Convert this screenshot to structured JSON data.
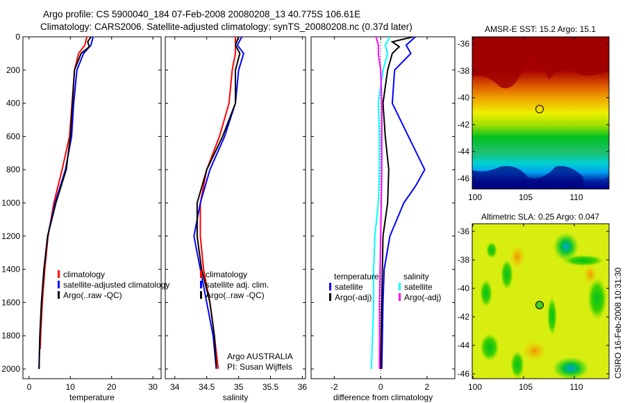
{
  "title": {
    "line1": "Argo profile: CS 5900040_184 07-Feb-2008 20080208_13 40.775S 106.61E",
    "line2": "Climatology: CARS2006. Satellite-adjusted climatology: synTS_20080208.nc (0.37d later)"
  },
  "credit": "CSIRO 16-Feb-2008 10:31:30",
  "colors": {
    "climatology": "#ff0000",
    "satellite": "#0000ff",
    "argo": "#000000",
    "sal_satellite": "#00ffff",
    "sal_argo": "#ff00ff"
  },
  "chart_data": [
    {
      "type": "line",
      "id": "temperature",
      "xlabel": "temperature",
      "xlim": [
        -1.5,
        32
      ],
      "xticks": [
        "0",
        "10",
        "20",
        "30"
      ],
      "ylim": [
        0,
        2050
      ],
      "yticks": [
        "0",
        "200",
        "400",
        "600",
        "800",
        "1000",
        "1200",
        "1400",
        "1600",
        "1800",
        "2000"
      ],
      "ylabel_reversed": true,
      "legend": [
        "climatology",
        "satellite-adjusted climatology",
        "Argo(..raw -QC)"
      ],
      "series": [
        {
          "name": "climatology",
          "color": "#ff0000",
          "depth": [
            0,
            50,
            100,
            200,
            400,
            600,
            800,
            1000,
            1200,
            1400,
            1600,
            1800,
            1880
          ],
          "values": [
            14,
            13.5,
            12,
            11,
            10.4,
            9.8,
            8,
            6,
            4.6,
            3.8,
            3.2,
            2.8,
            2.7
          ]
        },
        {
          "name": "satellite-adjusted climatology",
          "color": "#0000ff",
          "depth": [
            0,
            50,
            100,
            200,
            400,
            600,
            800,
            1000,
            1200,
            1400,
            1600,
            1800,
            2000
          ],
          "values": [
            15.5,
            15,
            13.2,
            11.6,
            10.8,
            10.3,
            8.8,
            6.3,
            4.5,
            3.6,
            3,
            2.6,
            2.4
          ]
        },
        {
          "name": "Argo(..raw -QC)",
          "color": "#000000",
          "depth": [
            0,
            30,
            60,
            100,
            200,
            400,
            600,
            800,
            1000,
            1200,
            1400,
            1600,
            1800,
            2000
          ],
          "values": [
            15,
            14.2,
            14.6,
            12.6,
            11,
            10.5,
            10,
            9,
            6.5,
            4.5,
            3.6,
            3,
            2.6,
            2.4
          ]
        }
      ]
    },
    {
      "type": "line",
      "id": "salinity",
      "xlabel": "salinity",
      "xlim": [
        33.85,
        36.05
      ],
      "xticks": [
        "34",
        "34.5",
        "35",
        "35.5",
        "36"
      ],
      "ylim": [
        0,
        2050
      ],
      "legend": [
        "climatology",
        "satellite adj. clim.",
        "Argo(..raw -QC)"
      ],
      "annotation": [
        "Argo AUSTRALIA",
        "PI: Susan Wijffels"
      ],
      "series": [
        {
          "name": "climatology",
          "color": "#ff0000",
          "depth": [
            0,
            100,
            200,
            400,
            600,
            800,
            1000,
            1200,
            1400,
            1600,
            1800,
            2000
          ],
          "values": [
            34.95,
            34.95,
            34.9,
            34.85,
            34.7,
            34.5,
            34.4,
            34.4,
            34.45,
            34.55,
            34.62,
            34.68
          ]
        },
        {
          "name": "satellite adj. clim.",
          "color": "#0000ff",
          "depth": [
            0,
            50,
            100,
            200,
            400,
            600,
            800,
            1000,
            1200,
            1400,
            1600,
            1800,
            2000
          ],
          "values": [
            35.05,
            34.98,
            35.08,
            35,
            34.95,
            34.78,
            34.55,
            34.4,
            34.3,
            34.4,
            34.5,
            34.6,
            34.65
          ]
        },
        {
          "name": "Argo(..raw -QC)",
          "color": "#000000",
          "depth": [
            0,
            50,
            100,
            200,
            400,
            600,
            800,
            1000,
            1200,
            1400,
            1600,
            1800,
            1990
          ],
          "values": [
            35,
            34.95,
            35.02,
            34.95,
            34.95,
            34.75,
            34.5,
            34.35,
            34.35,
            34.42,
            34.55,
            34.62,
            34.65
          ]
        }
      ]
    },
    {
      "type": "line",
      "id": "difference",
      "xlabel": "difference from climatology",
      "xlim": [
        -3,
        3.2
      ],
      "xticks": [
        "-2",
        "0",
        "2"
      ],
      "ylim": [
        0,
        2050
      ],
      "legend_headers": [
        "temperature",
        "salinity"
      ],
      "legend": [
        "satellite",
        "Argo(-adj)",
        "satellite",
        "Argo(-adj)"
      ],
      "series": [
        {
          "name": "temperature satellite",
          "color": "#0000ff",
          "depth": [
            0,
            50,
            100,
            200,
            400,
            600,
            800,
            900,
            1000,
            1200,
            1400,
            1600,
            2000
          ],
          "values": [
            1.5,
            1.1,
            1.3,
            0.6,
            0.5,
            1.2,
            1.9,
            1.5,
            1.0,
            0.4,
            0.15,
            0.1,
            0.05
          ]
        },
        {
          "name": "temperature Argo(-adj)",
          "color": "#000000",
          "depth": [
            0,
            30,
            60,
            100,
            200,
            400,
            600,
            800,
            1000,
            1200,
            1600,
            2000
          ],
          "values": [
            1.4,
            0.5,
            0.8,
            0.5,
            0.3,
            0.1,
            0.2,
            0.35,
            0.3,
            0.1,
            0.05,
            0
          ]
        },
        {
          "name": "salinity satellite",
          "color": "#00ffff",
          "depth": [
            0,
            50,
            100,
            200,
            400,
            600,
            800,
            1000,
            1200,
            1400,
            1600,
            1800,
            2000
          ],
          "values": [
            0.4,
            0.2,
            0.3,
            0.1,
            -0.1,
            -0.05,
            -0.05,
            -0.1,
            -0.25,
            -0.3,
            -0.3,
            -0.35,
            -0.4
          ]
        },
        {
          "name": "salinity Argo(-adj)",
          "color": "#ff00ff",
          "depth": [
            0,
            50,
            100,
            200,
            400,
            800,
            1200,
            1600,
            2000
          ],
          "values": [
            -0.2,
            -0.1,
            -0.1,
            0,
            0.05,
            0.05,
            0,
            -0.05,
            -0.05
          ]
        }
      ]
    },
    {
      "type": "heatmap",
      "id": "sst-map",
      "title": "AMSR-E SST: 15.2 Argo: 15.1",
      "xticks": [
        "100",
        "105",
        "110"
      ],
      "yticks": [
        "-36",
        "-38",
        "-40",
        "-42",
        "-44",
        "-46"
      ],
      "xlim": [
        100,
        113.5
      ],
      "ylim": [
        -46.9,
        -35
      ],
      "marker": {
        "lon": 106.61,
        "lat": -40.775
      }
    },
    {
      "type": "heatmap",
      "id": "sla-map",
      "title": "Altimetric SLA: 0.25 Argo: 0.047",
      "xticks": [
        "100",
        "105",
        "110"
      ],
      "yticks": [
        "-36",
        "-38",
        "-40",
        "-42",
        "-44",
        "-46"
      ],
      "xlim": [
        100,
        113.5
      ],
      "ylim": [
        -46.9,
        -35
      ],
      "marker": {
        "lon": 106.61,
        "lat": -40.775
      }
    }
  ]
}
